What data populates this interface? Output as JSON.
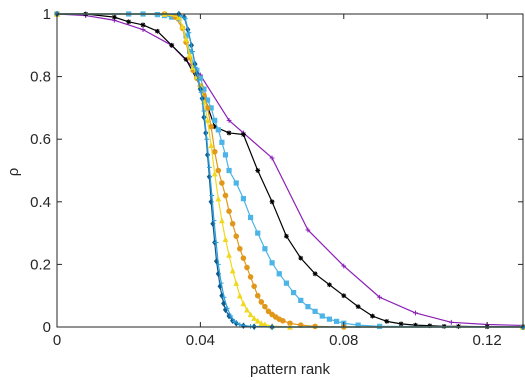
{
  "chart_data": {
    "type": "line",
    "xlabel": "pattern rank",
    "ylabel": "ρ",
    "xlim": [
      0,
      0.13
    ],
    "ylim": [
      0,
      1
    ],
    "grid": false,
    "legend": "none",
    "x_ticks": [
      {
        "value": 0,
        "label": "0"
      },
      {
        "value": 0.04,
        "label": "0.04"
      },
      {
        "value": 0.08,
        "label": "0.08"
      },
      {
        "value": 0.12,
        "label": "0.12"
      }
    ],
    "y_ticks": [
      {
        "value": 0,
        "label": "0"
      },
      {
        "value": 0.2,
        "label": "0.2"
      },
      {
        "value": 0.4,
        "label": "0.4"
      },
      {
        "value": 0.6,
        "label": "0.6"
      },
      {
        "value": 0.8,
        "label": "0.8"
      },
      {
        "value": 1,
        "label": "1"
      }
    ],
    "series": [
      {
        "color": "#8b1fb5",
        "marker": "plus",
        "points": [
          [
            0,
            1
          ],
          [
            0.008,
            0.995
          ],
          [
            0.016,
            0.98
          ],
          [
            0.024,
            0.95
          ],
          [
            0.032,
            0.9
          ],
          [
            0.04,
            0.805
          ],
          [
            0.048,
            0.66
          ],
          [
            0.052,
            0.62
          ],
          [
            0.06,
            0.54
          ],
          [
            0.07,
            0.31
          ],
          [
            0.08,
            0.195
          ],
          [
            0.09,
            0.095
          ],
          [
            0.1,
            0.045
          ],
          [
            0.11,
            0.015
          ],
          [
            0.12,
            0.008
          ],
          [
            0.13,
            0.005
          ]
        ]
      },
      {
        "color": "#000000",
        "marker": "asterisk",
        "points": [
          [
            0,
            1
          ],
          [
            0.008,
            1
          ],
          [
            0.016,
            0.99
          ],
          [
            0.02,
            0.975
          ],
          [
            0.024,
            0.965
          ],
          [
            0.028,
            0.945
          ],
          [
            0.032,
            0.9
          ],
          [
            0.036,
            0.855
          ],
          [
            0.04,
            0.77
          ],
          [
            0.044,
            0.64
          ],
          [
            0.048,
            0.62
          ],
          [
            0.052,
            0.615
          ],
          [
            0.056,
            0.5
          ],
          [
            0.06,
            0.4
          ],
          [
            0.064,
            0.29
          ],
          [
            0.068,
            0.22
          ],
          [
            0.072,
            0.17
          ],
          [
            0.076,
            0.135
          ],
          [
            0.08,
            0.1
          ],
          [
            0.084,
            0.065
          ],
          [
            0.088,
            0.035
          ],
          [
            0.092,
            0.018
          ],
          [
            0.096,
            0.01
          ],
          [
            0.1,
            0.006
          ],
          [
            0.104,
            0.004
          ],
          [
            0.108,
            0.002
          ],
          [
            0.112,
            0.002
          ],
          [
            0.12,
            0.001
          ],
          [
            0.13,
            0
          ]
        ]
      },
      {
        "color": "#4cb4e6",
        "marker": "square",
        "points": [
          [
            0,
            1
          ],
          [
            0.02,
            1
          ],
          [
            0.024,
            1
          ],
          [
            0.028,
            0.998
          ],
          [
            0.03,
            0.995
          ],
          [
            0.032,
            0.99
          ],
          [
            0.034,
            0.985
          ],
          [
            0.036,
            0.93
          ],
          [
            0.037,
            0.88
          ],
          [
            0.038,
            0.84
          ],
          [
            0.039,
            0.82
          ],
          [
            0.04,
            0.795
          ],
          [
            0.041,
            0.76
          ],
          [
            0.042,
            0.725
          ],
          [
            0.043,
            0.7
          ],
          [
            0.044,
            0.66
          ],
          [
            0.045,
            0.63
          ],
          [
            0.046,
            0.59
          ],
          [
            0.047,
            0.55
          ],
          [
            0.048,
            0.5
          ],
          [
            0.05,
            0.46
          ],
          [
            0.052,
            0.41
          ],
          [
            0.054,
            0.35
          ],
          [
            0.056,
            0.3
          ],
          [
            0.058,
            0.25
          ],
          [
            0.06,
            0.205
          ],
          [
            0.062,
            0.17
          ],
          [
            0.064,
            0.14
          ],
          [
            0.066,
            0.11
          ],
          [
            0.068,
            0.085
          ],
          [
            0.07,
            0.065
          ],
          [
            0.072,
            0.05
          ],
          [
            0.074,
            0.035
          ],
          [
            0.076,
            0.025
          ],
          [
            0.078,
            0.018
          ],
          [
            0.08,
            0.012
          ],
          [
            0.084,
            0.006
          ],
          [
            0.09,
            0.002
          ],
          [
            0.13,
            0
          ]
        ]
      },
      {
        "color": "#e1981a",
        "marker": "circle",
        "points": [
          [
            0,
            1
          ],
          [
            0.03,
            1
          ],
          [
            0.033,
            0.99
          ],
          [
            0.035,
            0.955
          ],
          [
            0.036,
            0.91
          ],
          [
            0.037,
            0.86
          ],
          [
            0.038,
            0.82
          ],
          [
            0.039,
            0.795
          ],
          [
            0.04,
            0.77
          ],
          [
            0.041,
            0.74
          ],
          [
            0.042,
            0.7
          ],
          [
            0.043,
            0.64
          ],
          [
            0.044,
            0.56
          ],
          [
            0.045,
            0.5
          ],
          [
            0.046,
            0.46
          ],
          [
            0.047,
            0.42
          ],
          [
            0.048,
            0.37
          ],
          [
            0.049,
            0.33
          ],
          [
            0.05,
            0.29
          ],
          [
            0.051,
            0.25
          ],
          [
            0.052,
            0.22
          ],
          [
            0.053,
            0.19
          ],
          [
            0.054,
            0.16
          ],
          [
            0.055,
            0.13
          ],
          [
            0.056,
            0.1
          ],
          [
            0.057,
            0.08
          ],
          [
            0.058,
            0.065
          ],
          [
            0.059,
            0.05
          ],
          [
            0.06,
            0.04
          ],
          [
            0.061,
            0.032
          ],
          [
            0.062,
            0.025
          ],
          [
            0.063,
            0.02
          ],
          [
            0.065,
            0.012
          ],
          [
            0.068,
            0.006
          ],
          [
            0.072,
            0.002
          ],
          [
            0.08,
            0
          ],
          [
            0.13,
            0
          ]
        ]
      },
      {
        "color": "#f0d820",
        "marker": "triangle",
        "points": [
          [
            0,
            1
          ],
          [
            0.03,
            1
          ],
          [
            0.034,
            0.99
          ],
          [
            0.035,
            0.96
          ],
          [
            0.036,
            0.92
          ],
          [
            0.037,
            0.87
          ],
          [
            0.038,
            0.83
          ],
          [
            0.039,
            0.8
          ],
          [
            0.04,
            0.77
          ],
          [
            0.041,
            0.72
          ],
          [
            0.042,
            0.66
          ],
          [
            0.043,
            0.58
          ],
          [
            0.044,
            0.49
          ],
          [
            0.045,
            0.41
          ],
          [
            0.046,
            0.34
          ],
          [
            0.047,
            0.28
          ],
          [
            0.048,
            0.23
          ],
          [
            0.049,
            0.18
          ],
          [
            0.05,
            0.14
          ],
          [
            0.051,
            0.1
          ],
          [
            0.052,
            0.075
          ],
          [
            0.053,
            0.055
          ],
          [
            0.054,
            0.04
          ],
          [
            0.055,
            0.028
          ],
          [
            0.056,
            0.02
          ],
          [
            0.057,
            0.012
          ],
          [
            0.058,
            0.008
          ],
          [
            0.06,
            0.003
          ],
          [
            0.065,
            0
          ],
          [
            0.13,
            0
          ]
        ]
      },
      {
        "color": "#0e5a8c",
        "marker": "diamond",
        "points": [
          [
            0,
            1
          ],
          [
            0.034,
            1
          ],
          [
            0.0355,
            0.99
          ],
          [
            0.0365,
            0.95
          ],
          [
            0.0375,
            0.9
          ],
          [
            0.0385,
            0.84
          ],
          [
            0.039,
            0.81
          ],
          [
            0.04,
            0.76
          ],
          [
            0.0405,
            0.73
          ],
          [
            0.041,
            0.67
          ],
          [
            0.0415,
            0.62
          ],
          [
            0.042,
            0.55
          ],
          [
            0.0425,
            0.48
          ],
          [
            0.043,
            0.4
          ],
          [
            0.0435,
            0.33
          ],
          [
            0.044,
            0.27
          ],
          [
            0.0445,
            0.21
          ],
          [
            0.045,
            0.17
          ],
          [
            0.0455,
            0.13
          ],
          [
            0.046,
            0.1
          ],
          [
            0.0465,
            0.075
          ],
          [
            0.047,
            0.055
          ],
          [
            0.048,
            0.035
          ],
          [
            0.049,
            0.02
          ],
          [
            0.05,
            0.012
          ],
          [
            0.052,
            0.004
          ],
          [
            0.055,
            0.001
          ],
          [
            0.06,
            0
          ],
          [
            0.13,
            0
          ]
        ]
      },
      {
        "color": "#2a9fdb",
        "marker": "plus",
        "points": [
          [
            0,
            1
          ],
          [
            0.034,
            1
          ],
          [
            0.0358,
            0.985
          ],
          [
            0.0368,
            0.94
          ],
          [
            0.0378,
            0.88
          ],
          [
            0.0386,
            0.83
          ],
          [
            0.0395,
            0.79
          ],
          [
            0.0402,
            0.75
          ],
          [
            0.041,
            0.69
          ],
          [
            0.0418,
            0.6
          ],
          [
            0.0425,
            0.51
          ],
          [
            0.0432,
            0.42
          ],
          [
            0.0438,
            0.34
          ],
          [
            0.0444,
            0.27
          ],
          [
            0.045,
            0.2
          ],
          [
            0.0458,
            0.14
          ],
          [
            0.0466,
            0.095
          ],
          [
            0.0475,
            0.06
          ],
          [
            0.0485,
            0.035
          ],
          [
            0.0495,
            0.018
          ],
          [
            0.051,
            0.007
          ],
          [
            0.054,
            0.002
          ],
          [
            0.06,
            0
          ],
          [
            0.13,
            0
          ]
        ]
      }
    ]
  }
}
